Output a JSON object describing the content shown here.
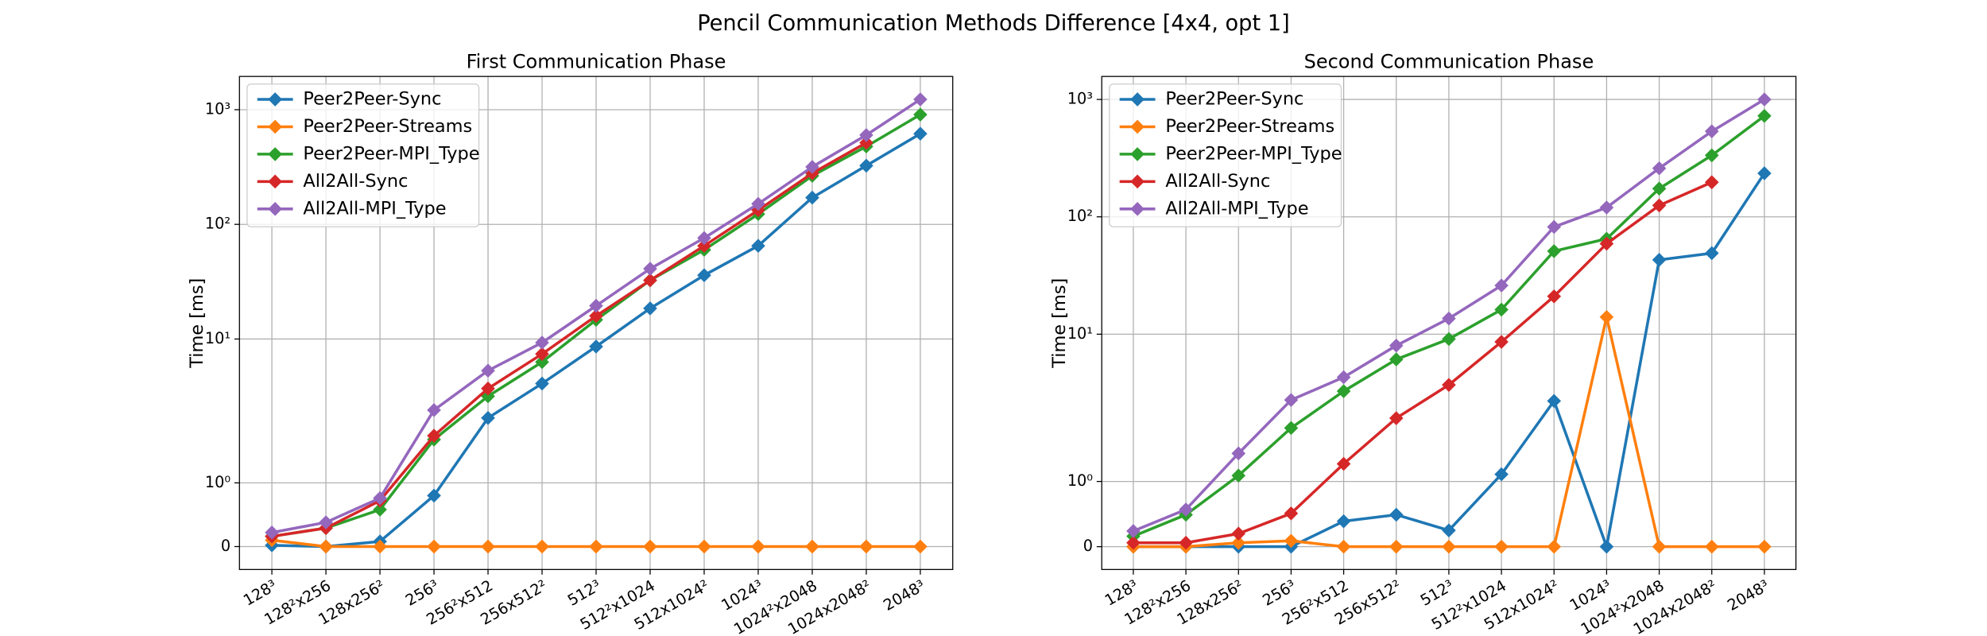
{
  "title": "Pencil Communication Methods Difference [4x4, opt 1]",
  "chart_data": [
    {
      "type": "line",
      "title": "First Communication Phase",
      "y_label": "Time [ms]",
      "yscale": "symlog",
      "linthresh": 2,
      "grid": true,
      "legend": "upper left",
      "categories": [
        "128³",
        "128²x256",
        "128x256²",
        "256³",
        "256²x512",
        "256x512²",
        "512³",
        "512²x1024",
        "512x1024²",
        "1024³",
        "1024²x2048",
        "1024x2048²",
        "2048³"
      ],
      "ylim": [
        -0.36,
        1950
      ],
      "yticks": [
        0,
        {
          "value": 1,
          "label": "10⁰"
        },
        {
          "value": 10,
          "label": "10¹"
        },
        {
          "value": 100,
          "label": "10²"
        },
        {
          "value": 1000,
          "label": "10³"
        }
      ],
      "series": [
        {
          "name": "Peer2Peer-Sync",
          "color": "#1f77b4",
          "values": [
            0.02,
            0,
            0.08,
            0.8,
            2.05,
            4.09,
            8.6,
            18.5,
            36,
            65,
            171,
            325,
            617
          ]
        },
        {
          "name": "Peer2Peer-Streams",
          "color": "#ff7f0e",
          "values": [
            0.1,
            0,
            0,
            0,
            0,
            0,
            0,
            0,
            0,
            0,
            0,
            0,
            0
          ]
        },
        {
          "name": "Peer2Peer-MPI_Type",
          "color": "#2ca02c",
          "values": [
            0.16,
            0.29,
            0.58,
            1.68,
            3.17,
            6.3,
            14.7,
            32.5,
            60,
            123,
            265,
            478,
            906
          ]
        },
        {
          "name": "All2All-Sync",
          "color": "#d62728",
          "values": [
            0.16,
            0.29,
            0.72,
            1.74,
            3.7,
            7.4,
            15.9,
            32.5,
            65,
            133,
            279,
            515,
            null
          ]
        },
        {
          "name": "All2All-MPI_Type",
          "color": "#9467bd",
          "values": [
            0.22,
            0.38,
            0.76,
            2.4,
            5.3,
            9.3,
            19.5,
            41,
            76,
            151,
            317,
            601,
            1230
          ]
        }
      ]
    },
    {
      "type": "line",
      "title": "Second Communication Phase",
      "y_label": "Time [ms]",
      "yscale": "symlog",
      "linthresh": 2,
      "grid": true,
      "legend": "upper left",
      "categories": [
        "128³",
        "128²x256",
        "128x256²",
        "256³",
        "256²x512",
        "256x512²",
        "512³",
        "512²x1024",
        "512x1024²",
        "1024³",
        "1024²x2048",
        "1024x2048²",
        "2048³"
      ],
      "ylim": [
        -0.35,
        1570
      ],
      "yticks": [
        0,
        {
          "value": 1,
          "label": "10⁰"
        },
        {
          "value": 10,
          "label": "10¹"
        },
        {
          "value": 100,
          "label": "10²"
        },
        {
          "value": 1000,
          "label": "10³"
        }
      ],
      "series": [
        {
          "name": "Peer2Peer-Sync",
          "color": "#1f77b4",
          "values": [
            0,
            0,
            0,
            0,
            0.39,
            0.49,
            0.25,
            1.11,
            2.7,
            0,
            43,
            49,
            235
          ]
        },
        {
          "name": "Peer2Peer-Streams",
          "color": "#ff7f0e",
          "values": [
            0,
            0,
            0.06,
            0.09,
            0,
            0,
            0,
            0,
            0,
            14,
            0,
            0,
            0
          ]
        },
        {
          "name": "Peer2Peer-MPI_Type",
          "color": "#2ca02c",
          "values": [
            0.16,
            0.49,
            1.09,
            1.82,
            3.27,
            6.1,
            9.1,
            16.2,
            51,
            65,
            174,
            334,
            724
          ]
        },
        {
          "name": "All2All-Sync",
          "color": "#d62728",
          "values": [
            0.06,
            0.06,
            0.2,
            0.51,
            1.27,
            1.97,
            3.7,
            8.6,
            21,
            59,
            125,
            197,
            null
          ]
        },
        {
          "name": "All2All-MPI_Type",
          "color": "#9467bd",
          "values": [
            0.24,
            0.57,
            1.43,
            2.75,
            4.3,
            8.0,
            13.6,
            26,
            82,
            120,
            259,
            535,
            1000
          ]
        }
      ]
    }
  ]
}
